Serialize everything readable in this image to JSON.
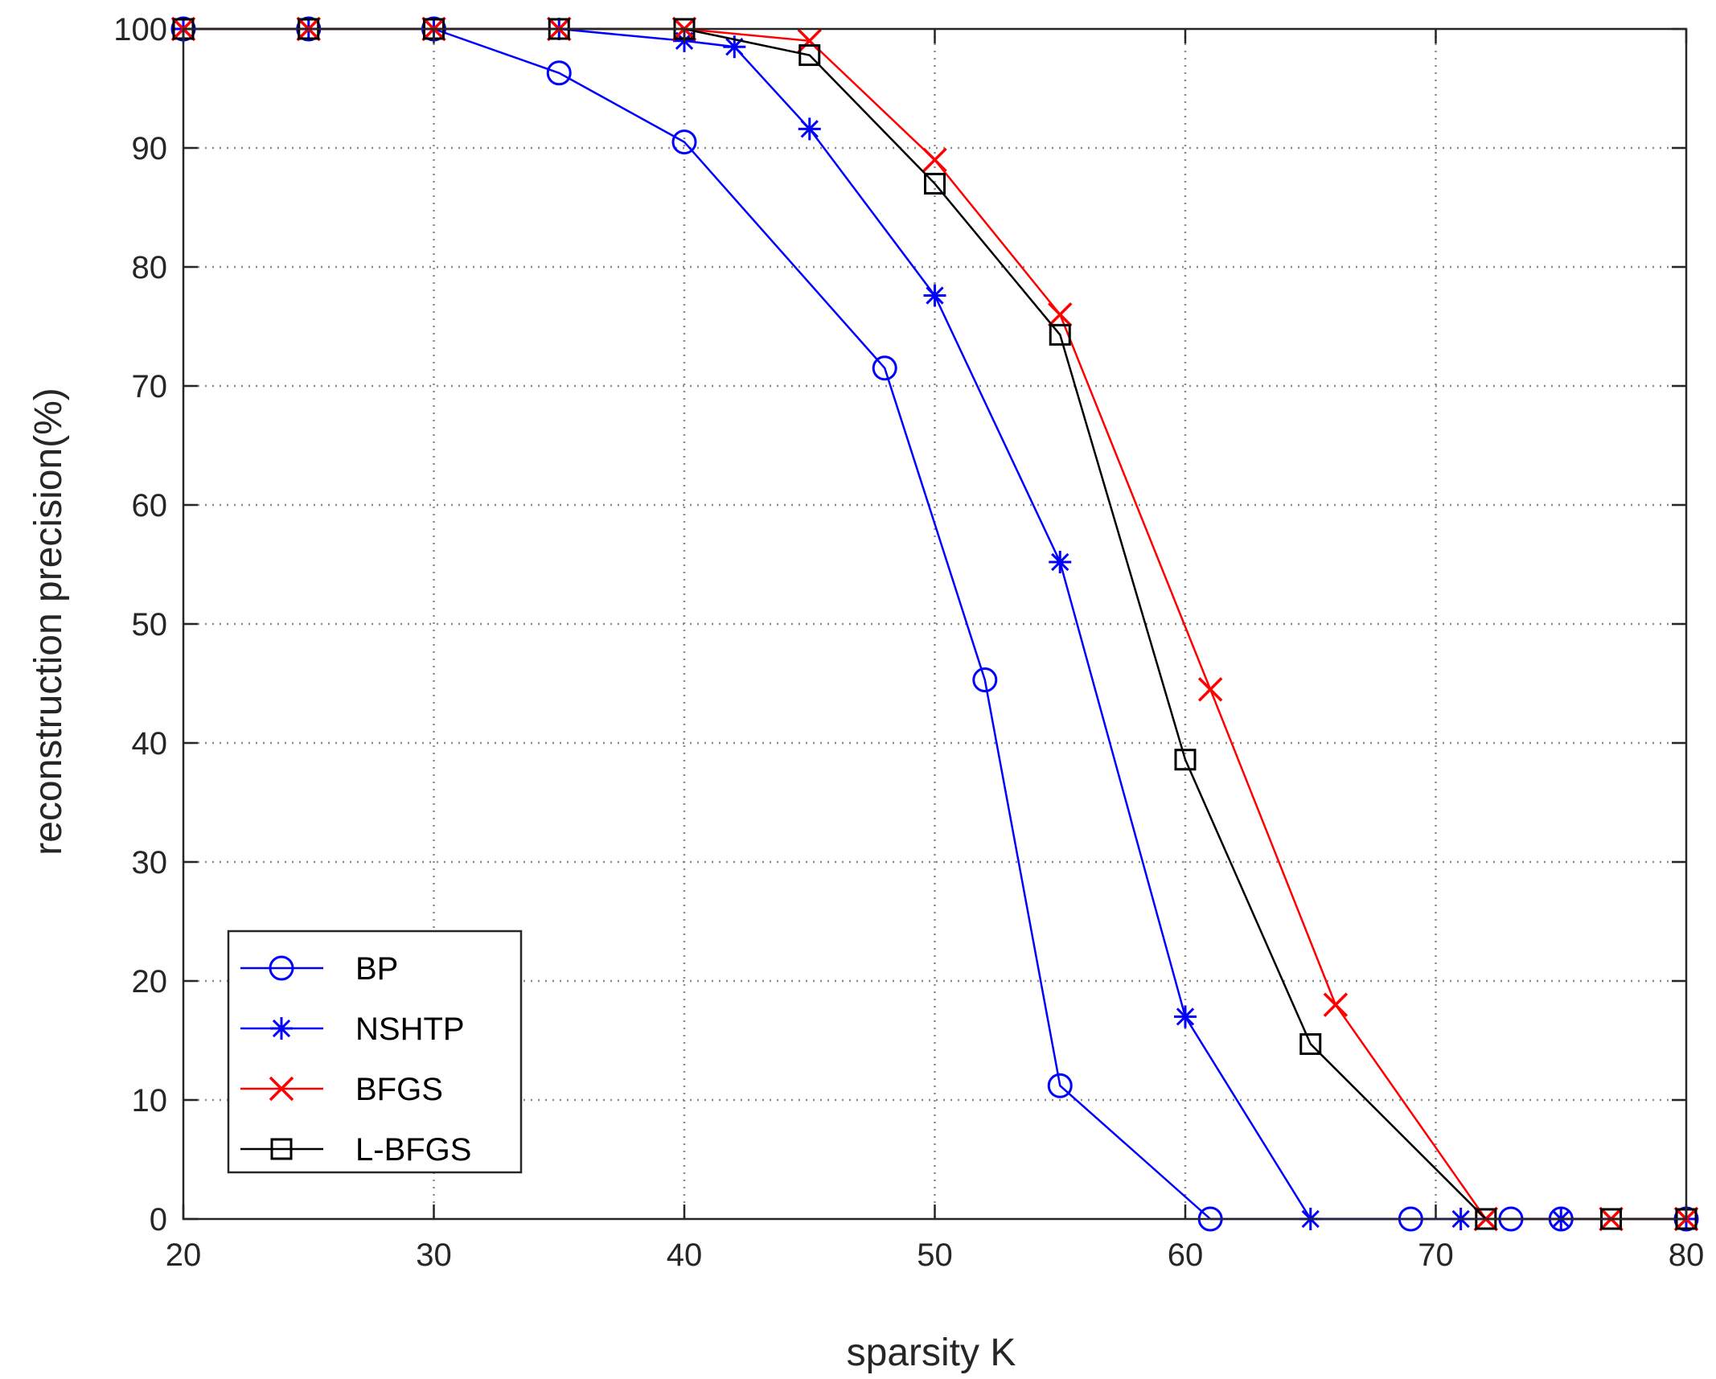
{
  "chart_data": {
    "type": "line",
    "xlabel": "sparsity K",
    "ylabel": "reconstruction precision(%)",
    "xlim": [
      20,
      80
    ],
    "ylim": [
      0,
      100
    ],
    "xticks": [
      20,
      30,
      40,
      50,
      60,
      70,
      80
    ],
    "yticks": [
      0,
      10,
      20,
      30,
      40,
      50,
      60,
      70,
      80,
      90,
      100
    ],
    "xtick_labels": [
      "20",
      "30",
      "40",
      "50",
      "60",
      "70",
      "80"
    ],
    "ytick_labels": [
      "0",
      "10",
      "20",
      "30",
      "40",
      "50",
      "60",
      "70",
      "80",
      "90",
      "100"
    ],
    "grid": "dotted",
    "legend_position": "lower-left",
    "series": [
      {
        "name": "BP",
        "color": "#0000ff",
        "marker": "circle",
        "x": [
          20,
          25,
          30,
          35,
          40,
          48,
          52,
          55,
          61,
          69,
          73,
          75,
          80
        ],
        "y": [
          100,
          100,
          100,
          96.3,
          90.5,
          71.5,
          45.3,
          11.2,
          0,
          0,
          0,
          0,
          0
        ]
      },
      {
        "name": "NSHTP",
        "color": "#0000ff",
        "marker": "star",
        "x": [
          20,
          25,
          30,
          35,
          40,
          42,
          45,
          50,
          55,
          60,
          65,
          71,
          75,
          80
        ],
        "y": [
          100,
          100,
          100,
          100,
          99,
          98.5,
          91.6,
          77.6,
          55.2,
          17,
          0,
          0,
          0,
          0
        ]
      },
      {
        "name": "BFGS",
        "color": "#ff0000",
        "marker": "x",
        "x": [
          20,
          25,
          30,
          35,
          40,
          45,
          50,
          55,
          61,
          66,
          72,
          77,
          80
        ],
        "y": [
          100,
          100,
          100,
          100,
          100,
          99,
          89,
          76,
          44.5,
          18,
          0,
          0,
          0
        ]
      },
      {
        "name": "L-BFGS",
        "color": "#000000",
        "marker": "square",
        "x": [
          20,
          25,
          30,
          35,
          40,
          45,
          50,
          55,
          60,
          65,
          72,
          77,
          80
        ],
        "y": [
          100,
          100,
          100,
          100,
          100,
          97.8,
          87,
          74.3,
          38.6,
          14.7,
          0,
          0,
          0
        ]
      }
    ]
  }
}
